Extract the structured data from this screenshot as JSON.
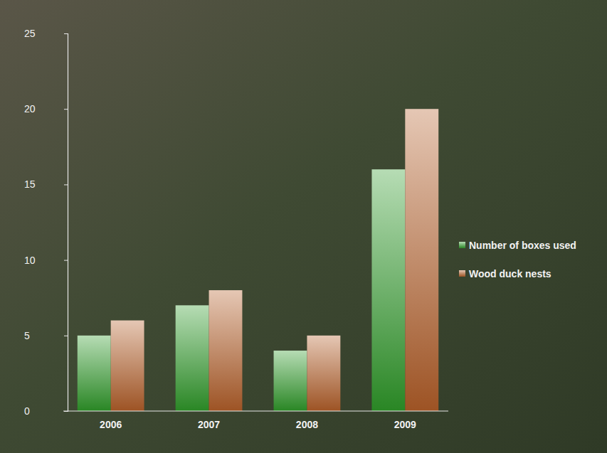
{
  "chart_data": {
    "type": "bar",
    "categories": [
      "2006",
      "2007",
      "2008",
      "2009"
    ],
    "series": [
      {
        "name": "Number of boxes used",
        "color": "#2f9a2a",
        "values": [
          5,
          7,
          4,
          16
        ]
      },
      {
        "name": "Wood duck nests",
        "color": "#b5602a",
        "values": [
          6,
          8,
          5,
          20
        ]
      }
    ],
    "ylim": [
      0,
      25
    ],
    "yticks": [
      0,
      5,
      10,
      15,
      20,
      25
    ],
    "grid": false,
    "legend": "right"
  }
}
